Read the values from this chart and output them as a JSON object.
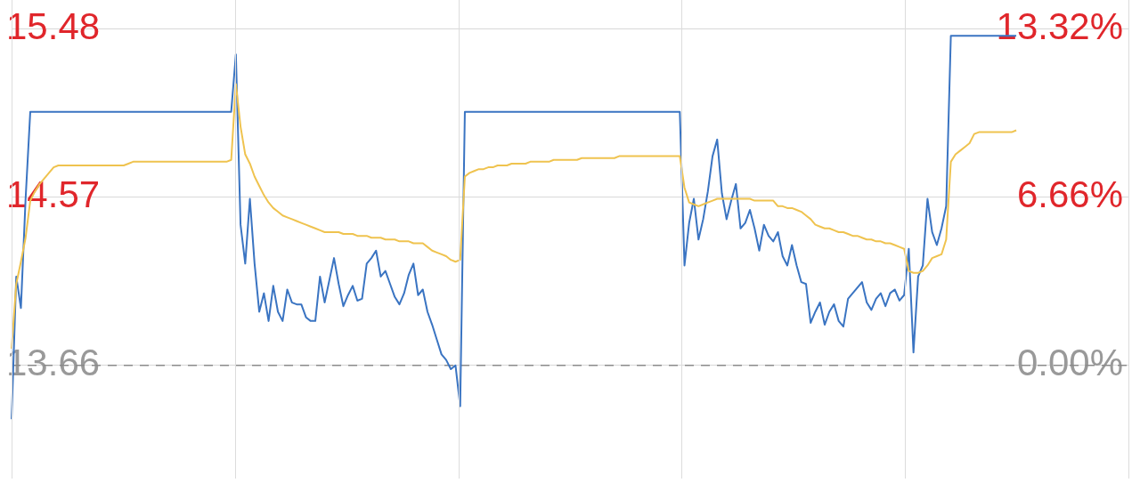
{
  "chart_data": {
    "type": "line",
    "categories": [
      null,
      null,
      null,
      null,
      null,
      null,
      null,
      null,
      null,
      null,
      null,
      null,
      null,
      null,
      null,
      null,
      null,
      null,
      null,
      null,
      null,
      null,
      null,
      null,
      null,
      null,
      null,
      null,
      null,
      null,
      null,
      null,
      null,
      null,
      null,
      null,
      null,
      null,
      null,
      null,
      null,
      null,
      null,
      null,
      null,
      null,
      null,
      null,
      null,
      null,
      null,
      null,
      null,
      null,
      null,
      null,
      null,
      null,
      null,
      null,
      null,
      null,
      null,
      null,
      null,
      null,
      null,
      null,
      null,
      null,
      null,
      null,
      null,
      null,
      null,
      null,
      null,
      null,
      null,
      null,
      null,
      null,
      null,
      null,
      null,
      null,
      null,
      null,
      null,
      null,
      null,
      null,
      null,
      null,
      null,
      null,
      null,
      null,
      null,
      null,
      null,
      null,
      null,
      null,
      null,
      null,
      null,
      null,
      null,
      null,
      null,
      null,
      null,
      null,
      null,
      null,
      null,
      null,
      null,
      null,
      null,
      null,
      null,
      null,
      null,
      null,
      null,
      null,
      null,
      null,
      null,
      null,
      null,
      null,
      null,
      null,
      null,
      null,
      null,
      null,
      null,
      null,
      null,
      null,
      null,
      null,
      null,
      null,
      null,
      null,
      null,
      null,
      null,
      null,
      null,
      null,
      null,
      null,
      null,
      null,
      null,
      null,
      null,
      null,
      null,
      null,
      null,
      null,
      null,
      null,
      null,
      null,
      null,
      null,
      null,
      null,
      null,
      null,
      null,
      null,
      null,
      null,
      null,
      null,
      null,
      null,
      null,
      null,
      null,
      null,
      null,
      null,
      null,
      null,
      null,
      null,
      null,
      null,
      null,
      null,
      null,
      null,
      null,
      null,
      null,
      null,
      null,
      null,
      null,
      null,
      null,
      null,
      null,
      null,
      null,
      null,
      null,
      null,
      null,
      null,
      null,
      null,
      null,
      null,
      null,
      null,
      null,
      null,
      null,
      null,
      null,
      null,
      null,
      null,
      null,
      null,
      null,
      null,
      null,
      null
    ],
    "ylim": [
      13.05,
      15.48
    ],
    "yticks": [
      {
        "value": 13.66,
        "label": "13.66"
      },
      {
        "value": 14.57,
        "label": "14.57"
      },
      {
        "value": 15.48,
        "label": "15.48"
      }
    ],
    "y2lim": [
      -4.47,
      13.32
    ],
    "y2ticks": [
      {
        "value": 0,
        "label": "0.00%"
      },
      {
        "value": 6.66,
        "label": "6.66%"
      },
      {
        "value": 13.32,
        "label": "13.32%"
      }
    ],
    "grid": "y",
    "tick_labels": "y",
    "legend": false,
    "marker": "none",
    "line_style": "solid",
    "ref_lines": [
      {
        "axis": "y",
        "value": 13.66,
        "color": "#8a8a8a",
        "line_style": "dashed"
      }
    ],
    "series": [
      {
        "color": "#3a74c2",
        "values": [
          13.37,
          14.14,
          13.97,
          14.56,
          15.03,
          15.03,
          15.03,
          15.03,
          15.03,
          15.03,
          15.03,
          15.03,
          15.03,
          15.03,
          15.03,
          15.03,
          15.03,
          15.03,
          15.03,
          15.03,
          15.03,
          15.03,
          15.03,
          15.03,
          15.03,
          15.03,
          15.03,
          15.03,
          15.03,
          15.03,
          15.03,
          15.03,
          15.03,
          15.03,
          15.03,
          15.03,
          15.03,
          15.03,
          15.03,
          15.03,
          15.03,
          15.03,
          15.03,
          15.03,
          15.03,
          15.03,
          15.03,
          15.03,
          15.34,
          14.42,
          14.21,
          14.56,
          14.21,
          13.95,
          14.05,
          13.9,
          14.09,
          13.95,
          13.9,
          14.07,
          14.0,
          13.99,
          13.99,
          13.92,
          13.9,
          13.9,
          14.14,
          14.0,
          14.12,
          14.24,
          14.1,
          13.98,
          14.04,
          14.09,
          14.01,
          14.02,
          14.21,
          14.24,
          14.28,
          14.14,
          14.17,
          14.1,
          14.03,
          13.99,
          14.05,
          14.15,
          14.21,
          14.04,
          14.07,
          13.95,
          13.88,
          13.8,
          13.72,
          13.69,
          13.64,
          13.66,
          13.44,
          15.03,
          15.03,
          15.03,
          15.03,
          15.03,
          15.03,
          15.03,
          15.03,
          15.03,
          15.03,
          15.03,
          15.03,
          15.03,
          15.03,
          15.03,
          15.03,
          15.03,
          15.03,
          15.03,
          15.03,
          15.03,
          15.03,
          15.03,
          15.03,
          15.03,
          15.03,
          15.03,
          15.03,
          15.03,
          15.03,
          15.03,
          15.03,
          15.03,
          15.03,
          15.03,
          15.03,
          15.03,
          15.03,
          15.03,
          15.03,
          15.03,
          15.03,
          15.03,
          15.03,
          15.03,
          15.03,
          15.03,
          14.2,
          14.43,
          14.56,
          14.34,
          14.45,
          14.6,
          14.79,
          14.88,
          14.59,
          14.45,
          14.55,
          14.64,
          14.4,
          14.43,
          14.5,
          14.4,
          14.28,
          14.42,
          14.36,
          14.33,
          14.38,
          14.25,
          14.2,
          14.31,
          14.2,
          14.11,
          14.1,
          13.89,
          13.95,
          14.0,
          13.88,
          13.95,
          13.99,
          13.9,
          13.87,
          14.02,
          14.05,
          14.08,
          14.11,
          14.0,
          13.96,
          14.02,
          14.05,
          13.98,
          14.05,
          14.07,
          14.01,
          14.04,
          14.29,
          13.73,
          14.14,
          14.2,
          14.56,
          14.38,
          14.31,
          14.4,
          14.52,
          15.44,
          15.44,
          15.44,
          15.44,
          15.44,
          15.44,
          15.44,
          15.44,
          15.44,
          15.44,
          15.44,
          15.44,
          15.44,
          15.44,
          15.44,
          null,
          null,
          null,
          null,
          null,
          null,
          null,
          null,
          null,
          null,
          null,
          null,
          null,
          null,
          null,
          null,
          null,
          null,
          null,
          null,
          null,
          null,
          null,
          null
        ]
      },
      {
        "color": "#efc34f",
        "values": [
          13.75,
          14.1,
          14.22,
          14.35,
          14.55,
          14.6,
          14.64,
          14.67,
          14.7,
          14.73,
          14.74,
          14.74,
          14.74,
          14.74,
          14.74,
          14.74,
          14.74,
          14.74,
          14.74,
          14.74,
          14.74,
          14.74,
          14.74,
          14.74,
          14.74,
          14.75,
          14.76,
          14.76,
          14.76,
          14.76,
          14.76,
          14.76,
          14.76,
          14.76,
          14.76,
          14.76,
          14.76,
          14.76,
          14.76,
          14.76,
          14.76,
          14.76,
          14.76,
          14.76,
          14.76,
          14.76,
          14.76,
          14.77,
          15.18,
          14.95,
          14.8,
          14.75,
          14.68,
          14.63,
          14.58,
          14.54,
          14.51,
          14.49,
          14.47,
          14.46,
          14.45,
          14.44,
          14.43,
          14.42,
          14.41,
          14.4,
          14.39,
          14.38,
          14.38,
          14.38,
          14.38,
          14.37,
          14.37,
          14.37,
          14.36,
          14.36,
          14.36,
          14.35,
          14.35,
          14.35,
          14.34,
          14.34,
          14.34,
          14.33,
          14.33,
          14.33,
          14.32,
          14.32,
          14.32,
          14.3,
          14.28,
          14.27,
          14.26,
          14.25,
          14.23,
          14.22,
          14.23,
          14.68,
          14.7,
          14.71,
          14.72,
          14.72,
          14.73,
          14.73,
          14.74,
          14.74,
          14.74,
          14.75,
          14.75,
          14.75,
          14.75,
          14.76,
          14.76,
          14.76,
          14.76,
          14.76,
          14.77,
          14.77,
          14.77,
          14.77,
          14.77,
          14.77,
          14.78,
          14.78,
          14.78,
          14.78,
          14.78,
          14.78,
          14.78,
          14.78,
          14.79,
          14.79,
          14.79,
          14.79,
          14.79,
          14.79,
          14.79,
          14.79,
          14.79,
          14.79,
          14.79,
          14.79,
          14.79,
          14.79,
          14.62,
          14.54,
          14.53,
          14.52,
          14.53,
          14.54,
          14.55,
          14.56,
          14.56,
          14.56,
          14.56,
          14.56,
          14.56,
          14.56,
          14.56,
          14.55,
          14.55,
          14.55,
          14.55,
          14.55,
          14.52,
          14.52,
          14.51,
          14.51,
          14.5,
          14.49,
          14.47,
          14.45,
          14.42,
          14.41,
          14.4,
          14.4,
          14.39,
          14.38,
          14.38,
          14.37,
          14.36,
          14.36,
          14.35,
          14.34,
          14.34,
          14.33,
          14.33,
          14.32,
          14.32,
          14.31,
          14.3,
          14.29,
          14.17,
          14.16,
          14.16,
          14.17,
          14.2,
          14.24,
          14.25,
          14.26,
          14.34,
          14.76,
          14.8,
          14.82,
          14.84,
          14.86,
          14.91,
          14.92,
          14.92,
          14.92,
          14.92,
          14.92,
          14.92,
          14.92,
          14.92,
          14.93,
          null,
          null,
          null,
          null,
          null,
          null,
          null,
          null,
          null,
          null,
          null,
          null,
          null,
          null,
          null,
          null,
          null,
          null,
          null,
          null,
          null,
          null,
          null,
          null
        ]
      }
    ]
  }
}
